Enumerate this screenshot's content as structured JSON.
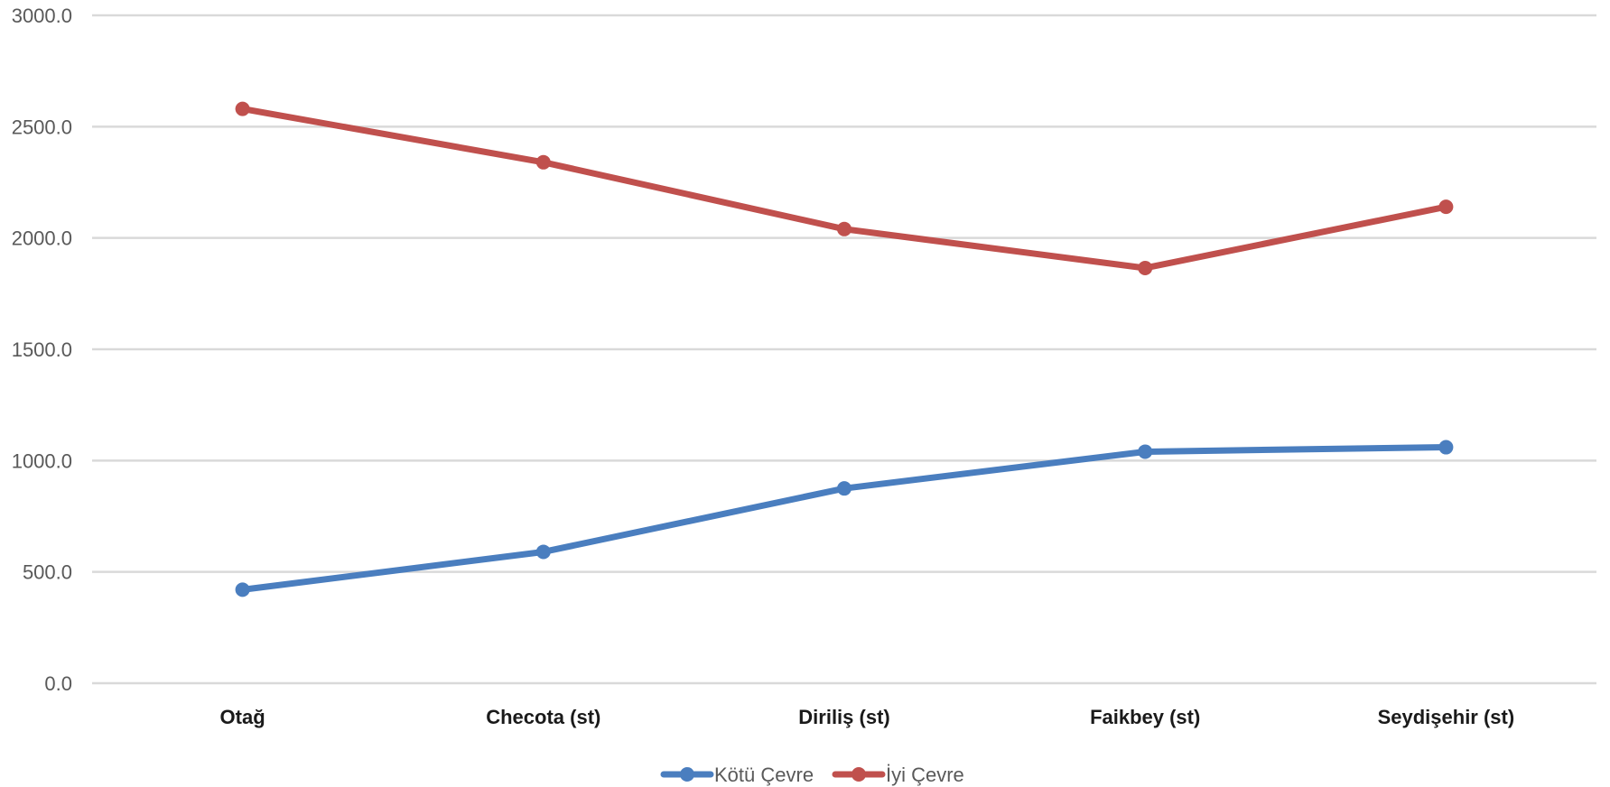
{
  "chart_data": {
    "type": "line",
    "categories": [
      "Otağ",
      "Checota (st)",
      "Diriliş (st)",
      "Faikbey (st)",
      "Seydişehir (st)"
    ],
    "series": [
      {
        "name": "Kötü Çevre",
        "values": [
          420,
          590,
          875,
          1040,
          1060
        ],
        "color": "#4a7ebf"
      },
      {
        "name": "İyi Çevre",
        "values": [
          2580,
          2340,
          2040,
          1865,
          2140
        ],
        "color": "#c0504d"
      }
    ],
    "ylim": [
      0,
      3000
    ],
    "yticks": [
      0,
      500,
      1000,
      1500,
      2000,
      2500,
      3000
    ],
    "ytick_format_decimals": 1,
    "grid": true,
    "gridline_color": "#d9d9d9",
    "legend_position": "bottom",
    "title": "",
    "xlabel": "",
    "ylabel": ""
  }
}
